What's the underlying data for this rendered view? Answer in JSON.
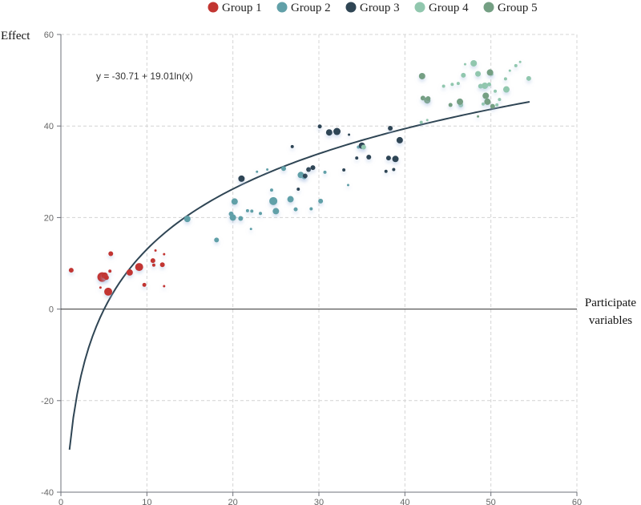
{
  "chart_data": {
    "type": "scatter",
    "title": "",
    "xlabel": "Participate variables",
    "ylabel": "Effect",
    "xlim": [
      0,
      60
    ],
    "ylim": [
      -40,
      60
    ],
    "x_ticks": [
      0,
      10,
      20,
      30,
      40,
      50,
      60
    ],
    "y_ticks": [
      -40,
      -20,
      0,
      20,
      40,
      60
    ],
    "grid": true,
    "legend_position": "top-center",
    "regression": {
      "equation": "y = -30.71 + 19.01ln(x)",
      "intercept": -30.71,
      "coefficient": 19.01,
      "x_range": [
        1,
        54.5
      ],
      "color": "#2f4554"
    },
    "series": [
      {
        "name": "Group 1",
        "color": "#c23531",
        "points": [
          [
            1.2,
            8.5,
            3
          ],
          [
            4.6,
            4.7,
            1.5
          ],
          [
            4.8,
            7.0,
            6
          ],
          [
            5.1,
            7.3,
            4
          ],
          [
            5.3,
            6.9,
            3
          ],
          [
            5.5,
            3.8,
            5
          ],
          [
            5.7,
            8.3,
            2
          ],
          [
            5.8,
            12.1,
            3
          ],
          [
            8.0,
            8.0,
            4
          ],
          [
            9.1,
            9.2,
            5
          ],
          [
            9.7,
            5.3,
            2.5
          ],
          [
            10.7,
            10.6,
            3
          ],
          [
            10.8,
            9.6,
            2
          ],
          [
            11.0,
            12.8,
            1.5
          ],
          [
            11.8,
            9.7,
            3
          ],
          [
            12.0,
            12.0,
            1.5
          ],
          [
            12.0,
            5.0,
            1.5
          ]
        ]
      },
      {
        "name": "Group 2",
        "color": "#61a0a8",
        "points": [
          [
            14.7,
            19.7,
            4
          ],
          [
            18.1,
            15.1,
            3
          ],
          [
            19.8,
            20.8,
            3
          ],
          [
            20.0,
            20.0,
            4
          ],
          [
            20.2,
            23.5,
            4
          ],
          [
            20.9,
            19.8,
            3
          ],
          [
            21.7,
            21.5,
            2
          ],
          [
            22.1,
            17.5,
            1.5
          ],
          [
            22.2,
            21.4,
            2
          ],
          [
            22.8,
            30.0,
            1.5
          ],
          [
            23.2,
            20.9,
            2
          ],
          [
            24.0,
            30.5,
            1.5
          ],
          [
            24.5,
            26.0,
            2
          ],
          [
            24.7,
            23.6,
            5
          ],
          [
            25.0,
            21.4,
            4
          ],
          [
            25.9,
            30.7,
            3
          ],
          [
            26.7,
            24.0,
            4
          ],
          [
            27.3,
            21.8,
            2.5
          ],
          [
            27.9,
            29.3,
            4
          ],
          [
            28.3,
            28.9,
            3
          ],
          [
            29.1,
            21.9,
            2
          ],
          [
            30.2,
            23.6,
            3
          ],
          [
            30.7,
            29.9,
            2
          ],
          [
            33.4,
            27.1,
            1.5
          ],
          [
            34.6,
            35.4,
            2
          ]
        ]
      },
      {
        "name": "Group 3",
        "color": "#2f4554",
        "points": [
          [
            21.0,
            28.5,
            4
          ],
          [
            26.9,
            35.5,
            2
          ],
          [
            27.6,
            26.2,
            2
          ],
          [
            28.4,
            29.1,
            3
          ],
          [
            28.8,
            30.5,
            3
          ],
          [
            29.3,
            30.9,
            3
          ],
          [
            30.1,
            39.9,
            2.5
          ],
          [
            31.2,
            38.6,
            4
          ],
          [
            32.1,
            38.8,
            4.5
          ],
          [
            32.9,
            30.4,
            2
          ],
          [
            33.5,
            38.1,
            1.5
          ],
          [
            34.4,
            33.0,
            2
          ],
          [
            35.0,
            35.7,
            4
          ],
          [
            35.8,
            33.2,
            3
          ],
          [
            37.8,
            30.1,
            2
          ],
          [
            38.1,
            33.0,
            3
          ],
          [
            38.3,
            39.5,
            3
          ],
          [
            38.7,
            30.5,
            2
          ],
          [
            38.9,
            32.8,
            4
          ],
          [
            39.4,
            36.9,
            4
          ]
        ]
      },
      {
        "name": "Group 4",
        "color": "#91c7ae",
        "points": [
          [
            35.2,
            35.4,
            3
          ],
          [
            41.9,
            40.8,
            2
          ],
          [
            42.6,
            41.3,
            1.5
          ],
          [
            44.5,
            48.7,
            2
          ],
          [
            45.5,
            49.1,
            2
          ],
          [
            46.2,
            49.3,
            2
          ],
          [
            46.5,
            44.6,
            3
          ],
          [
            46.8,
            51.1,
            3
          ],
          [
            47.0,
            53.5,
            1.5
          ],
          [
            48.0,
            53.7,
            4
          ],
          [
            48.5,
            51.4,
            3.5
          ],
          [
            48.8,
            48.7,
            3
          ],
          [
            49.1,
            44.8,
            2
          ],
          [
            49.3,
            48.8,
            4
          ],
          [
            49.8,
            49.1,
            2.5
          ],
          [
            50.1,
            51.3,
            2
          ],
          [
            50.5,
            47.6,
            2
          ],
          [
            50.7,
            44.6,
            2
          ],
          [
            51.0,
            45.8,
            2
          ],
          [
            51.7,
            50.3,
            2
          ],
          [
            51.8,
            48.0,
            4
          ],
          [
            52.2,
            52.1,
            1.5
          ],
          [
            52.9,
            53.2,
            2
          ],
          [
            53.4,
            54.0,
            1.5
          ],
          [
            54.4,
            50.4,
            3
          ]
        ]
      },
      {
        "name": "Group 5",
        "color": "#749f83",
        "points": [
          [
            42.0,
            50.9,
            4
          ],
          [
            42.1,
            46.1,
            3
          ],
          [
            42.6,
            45.6,
            4
          ],
          [
            42.7,
            46.0,
            3
          ],
          [
            45.3,
            44.6,
            2.5
          ],
          [
            46.4,
            45.3,
            4
          ],
          [
            48.5,
            42.1,
            1.5
          ],
          [
            49.4,
            46.6,
            4
          ],
          [
            49.6,
            45.3,
            4
          ],
          [
            49.9,
            51.7,
            4
          ],
          [
            50.2,
            44.3,
            3
          ]
        ]
      }
    ]
  }
}
